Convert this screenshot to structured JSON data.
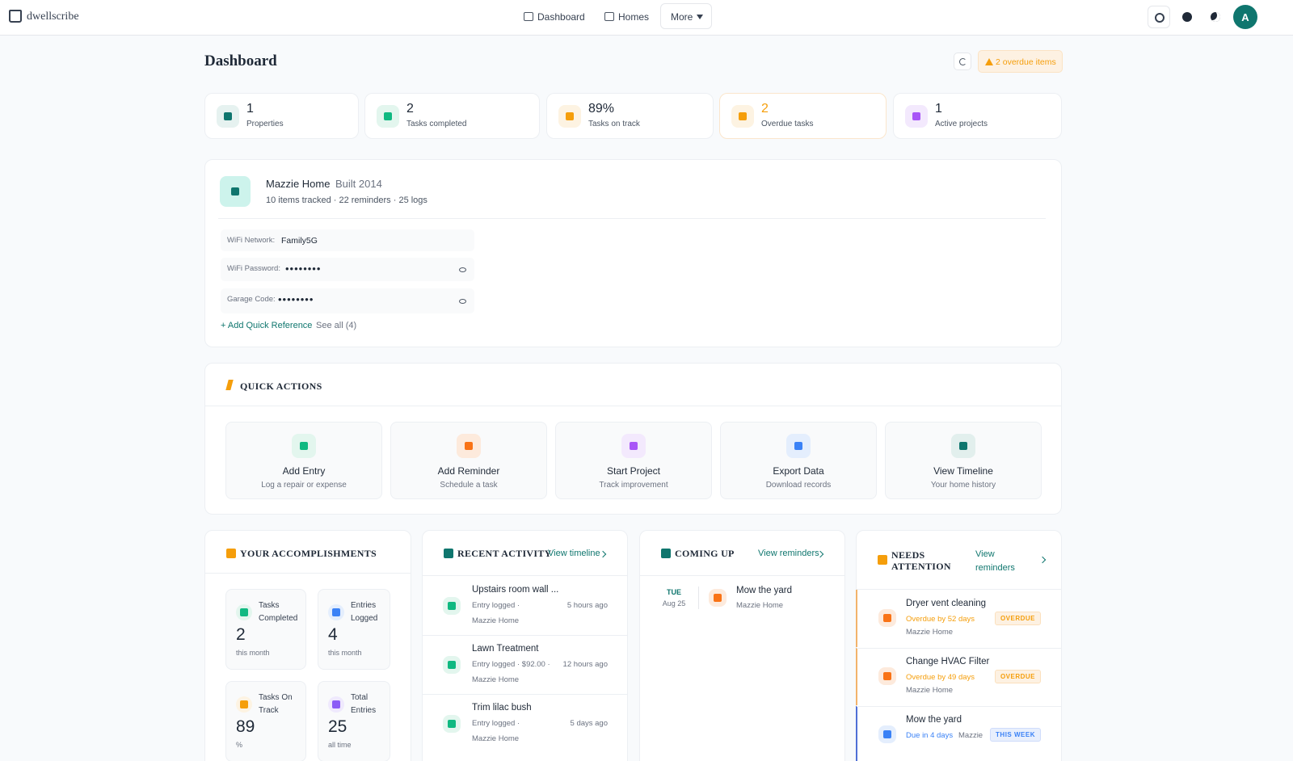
{
  "nav": {
    "brand": "dwellscribe",
    "links": [
      "Dashboard",
      "Homes",
      "More"
    ],
    "avatar": "A"
  },
  "header": {
    "title": "Dashboard",
    "overdue_badge": "2 overdue items"
  },
  "stats": [
    {
      "value": "1",
      "label": "Properties"
    },
    {
      "value": "2",
      "label": "Tasks completed"
    },
    {
      "value": "89%",
      "label": "Tasks on track"
    },
    {
      "value": "2",
      "label": "Overdue tasks"
    },
    {
      "value": "1",
      "label": "Active projects"
    }
  ],
  "property": {
    "name": "Mazzie Home",
    "built": "Built 2014",
    "summary": "10 items tracked · 22 reminders · 25 logs",
    "references": [
      {
        "label": "WiFi Network:",
        "value": "Family5G"
      },
      {
        "label": "WiFi Password:",
        "value": "••••••••"
      },
      {
        "label": "Garage Code:",
        "value": "••••••••"
      }
    ],
    "add_link": "+ Add Quick Reference",
    "see_all": "See all (4)"
  },
  "quick_actions": {
    "title": "QUICK ACTIONS",
    "actions": [
      {
        "title": "Add Entry",
        "subtitle": "Log a repair or expense"
      },
      {
        "title": "Add Reminder",
        "subtitle": "Schedule a task"
      },
      {
        "title": "Start Project",
        "subtitle": "Track improvement"
      },
      {
        "title": "Export Data",
        "subtitle": "Download records"
      },
      {
        "title": "View Timeline",
        "subtitle": "Your home history"
      }
    ]
  },
  "accomplishments": {
    "title": "YOUR ACCOMPLISHMENTS",
    "cards": [
      {
        "label": "Tasks Completed",
        "value": "2",
        "note": "this month"
      },
      {
        "label": "Entries Logged",
        "value": "4",
        "note": "this month"
      },
      {
        "label": "Tasks On Track",
        "value": "89",
        "note": "%"
      },
      {
        "label": "Total Entries",
        "value": "25",
        "note": "all time"
      }
    ]
  },
  "recent_activity": {
    "title": "RECENT ACTIVITY",
    "link": "View timeline",
    "items": [
      {
        "title": "Upstairs room wall ...",
        "detail": "Entry logged ·",
        "home": "Mazzie Home",
        "time": "5 hours ago"
      },
      {
        "title": "Lawn Treatment",
        "detail": "Entry logged · $92.00 ·",
        "home": "Mazzie Home",
        "time": "12 hours ago"
      },
      {
        "title": "Trim lilac bush",
        "detail": "Entry logged ·",
        "home": "Mazzie Home",
        "time": "5 days ago"
      }
    ]
  },
  "coming_up": {
    "title": "COMING UP",
    "link": "View reminders",
    "items": [
      {
        "day": "TUE",
        "date": "Aug 25",
        "title": "Mow the yard",
        "home": "Mazzie Home"
      }
    ]
  },
  "needs_attention": {
    "title": "NEEDS ATTENTION",
    "link": "View reminders",
    "items": [
      {
        "title": "Dryer vent cleaning",
        "status": "Overdue by 52 days",
        "home": "Mazzie Home",
        "badge": "OVERDUE"
      },
      {
        "title": "Change HVAC Filter",
        "status": "Overdue by 49 days",
        "home": "Mazzie Home",
        "badge": "OVERDUE"
      },
      {
        "title": "Mow the yard",
        "status": "Due in 4 days",
        "home": "Mazzie",
        "badge": "THIS WEEK"
      }
    ]
  }
}
